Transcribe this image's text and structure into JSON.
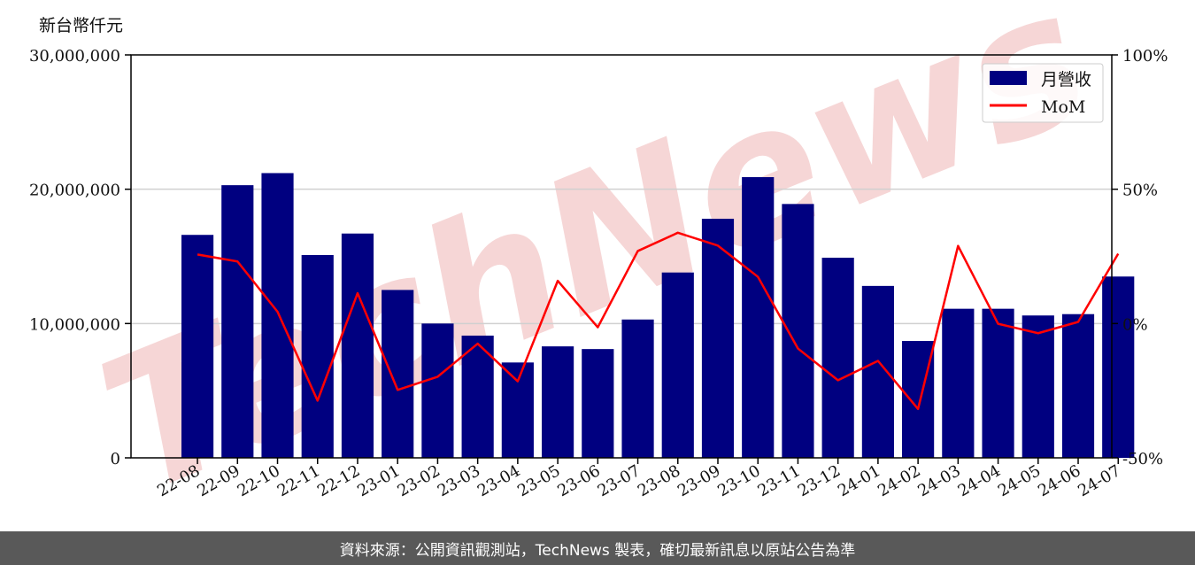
{
  "unit_label": "新台幣仟元",
  "footer_text": "資料來源：公開資訊觀測站，TechNews 製表，確切最新訊息以原站公告為準",
  "watermark_text": "TechNews",
  "colors": {
    "bar": "#000080",
    "line": "#ff0000",
    "grid": "#d0d0d0",
    "footer_bg": "#595959",
    "watermark": "#f3c9c9"
  },
  "chart_data": {
    "type": "bar",
    "categories": [
      "22-08",
      "22-09",
      "22-10",
      "22-11",
      "22-12",
      "23-01",
      "23-02",
      "23-03",
      "23-04",
      "23-05",
      "23-06",
      "23-07",
      "23-08",
      "23-09",
      "23-10",
      "23-11",
      "23-12",
      "24-01",
      "24-02",
      "24-03",
      "24-04",
      "24-05",
      "24-06",
      "24-07"
    ],
    "series": [
      {
        "name": "月營收",
        "type": "bar",
        "axis": "left",
        "values": [
          16600000,
          20300000,
          21200000,
          15100000,
          16700000,
          12500000,
          10000000,
          9100000,
          7100000,
          8300000,
          8100000,
          10300000,
          13800000,
          17800000,
          20900000,
          18900000,
          14900000,
          12800000,
          8700000,
          11100000,
          11100000,
          10600000,
          10700000,
          13500000
        ]
      },
      {
        "name": "MoM",
        "type": "line",
        "axis": "right",
        "values": [
          25.7,
          23.1,
          4.4,
          -28.7,
          11.3,
          -24.7,
          -19.8,
          -7.5,
          -21.5,
          15.9,
          -1.4,
          27.0,
          33.8,
          29.0,
          17.4,
          -9.3,
          -21.1,
          -13.9,
          -31.8,
          28.9,
          -0.1,
          -3.6,
          0.6,
          26.0
        ]
      }
    ],
    "yaxis_left": {
      "min": 0,
      "max": 30000000,
      "ticks": [
        "0",
        "10,000,000",
        "20,000,000",
        "30,000,000"
      ]
    },
    "yaxis_right": {
      "min": -50,
      "max": 100,
      "ticks": [
        "-50%",
        "0%",
        "50%",
        "100%"
      ]
    },
    "grid": "horizontal",
    "legend_position": "top-right"
  }
}
